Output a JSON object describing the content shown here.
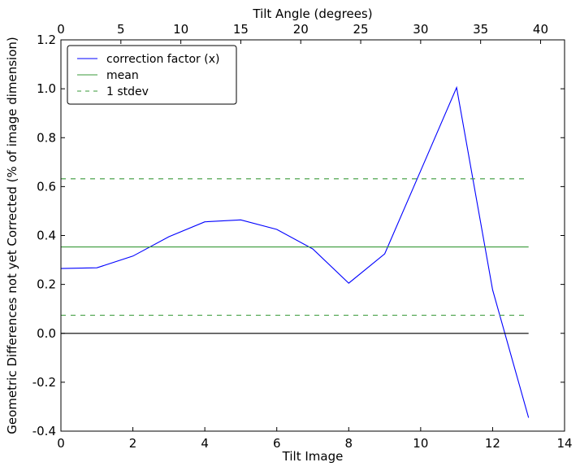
{
  "chart_data": {
    "type": "line",
    "xlabel": "Tilt Image",
    "x2label": "Tilt Angle (degrees)",
    "ylabel": "Geometric Differences not yet Corrected (% of image dimension)",
    "xlim": [
      0,
      14
    ],
    "x2lim": [
      0,
      42
    ],
    "ylim": [
      -0.4,
      1.2
    ],
    "xticks": [
      "0",
      "2",
      "4",
      "6",
      "8",
      "10",
      "12",
      "14"
    ],
    "x2ticks": [
      "0",
      "5",
      "10",
      "15",
      "20",
      "25",
      "30",
      "35",
      "40"
    ],
    "yticks": [
      "-0.4",
      "-0.2",
      "0.0",
      "0.2",
      "0.4",
      "0.6",
      "0.8",
      "1.0",
      "1.2"
    ],
    "grid": false,
    "legend_position": "top-left",
    "series": [
      {
        "name": "correction factor (x)",
        "color": "#0000ff",
        "style": "solid",
        "x": [
          0,
          1,
          2,
          3,
          4,
          5,
          6,
          7,
          8,
          9,
          10,
          11,
          12,
          13
        ],
        "values": [
          0.265,
          0.268,
          0.316,
          0.395,
          0.456,
          0.464,
          0.425,
          0.345,
          0.205,
          0.325,
          0.665,
          1.005,
          0.178,
          -0.345
        ]
      },
      {
        "name": "mean",
        "color": "#3a9a3a",
        "style": "solid",
        "x": [
          0,
          13
        ],
        "values": [
          0.353,
          0.353
        ]
      },
      {
        "name": "1 stdev",
        "color": "#3a9a3a",
        "style": "dashed",
        "x": [
          0,
          13
        ],
        "values": [
          0.632,
          0.632
        ]
      },
      {
        "name": "",
        "color": "#3a9a3a",
        "style": "dashed",
        "x": [
          0,
          13
        ],
        "values": [
          0.074,
          0.074
        ]
      },
      {
        "name": "",
        "color": "#000000",
        "style": "solid",
        "x": [
          0,
          13
        ],
        "values": [
          0.0,
          0.0
        ]
      }
    ]
  }
}
